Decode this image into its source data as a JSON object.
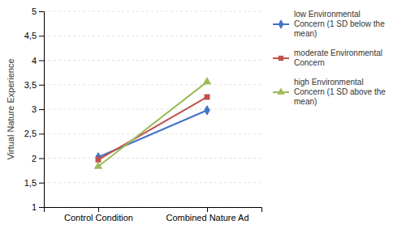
{
  "chart_data": {
    "type": "line",
    "categories": [
      "Control Condition",
      "Combined Nature Ad"
    ],
    "series": [
      {
        "name": "low Environmental\nConcern (1 SD below the\nmean)",
        "color": "#4472C4",
        "marker": "diamond",
        "values": [
          2.02,
          2.98
        ]
      },
      {
        "name": "moderate Environmental\nConcern",
        "color": "#C0504D",
        "marker": "square",
        "values": [
          1.97,
          3.25
        ]
      },
      {
        "name": "high Environmental\nConcern (1 SD above the\nmean)",
        "color": "#9BBB59",
        "marker": "triangle",
        "values": [
          1.83,
          3.56
        ]
      }
    ],
    "y_label": "Virtual Nature Experience",
    "ylim": [
      1,
      5
    ],
    "yticks": [
      1,
      {
        "value": 1.5,
        "label": "1,5"
      },
      2,
      {
        "value": 2.5,
        "label": "2,5"
      },
      3,
      {
        "value": 3.5,
        "label": "3,5"
      },
      4,
      {
        "value": 4.5,
        "label": "4,5"
      },
      5
    ],
    "grid": true,
    "legend": "right"
  }
}
